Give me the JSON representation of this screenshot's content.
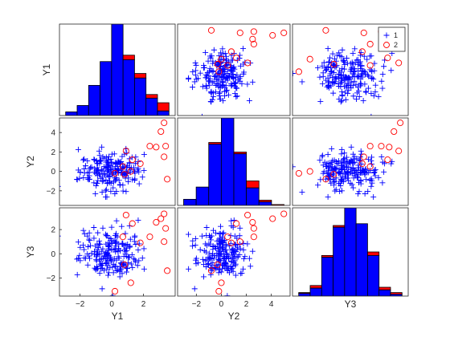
{
  "chart_data": {
    "type": "scatter-matrix",
    "variables": [
      "Y1",
      "Y2",
      "Y3"
    ],
    "colors": {
      "group1": "#0000ff",
      "group2": "#ff0000"
    },
    "legend": {
      "placement": "top-right",
      "entries": [
        {
          "label": "1",
          "marker": "plus",
          "color": "#0000ff"
        },
        {
          "label": "2",
          "marker": "circle",
          "color": "#ff0000"
        }
      ]
    },
    "axes": {
      "Y1": {
        "range": [
          -3.3,
          4.0
        ],
        "ticks": [
          -2,
          0,
          2
        ]
      },
      "Y2": {
        "range": [
          -3.5,
          5.5
        ],
        "ticks": [
          -2,
          0,
          2,
          4
        ]
      },
      "Y3": {
        "range": [
          -3.5,
          3.8
        ],
        "ticks": [
          -2,
          0,
          2
        ]
      }
    },
    "histograms": {
      "Y1": {
        "edges": [
          -3.0,
          -2.3,
          -1.6,
          -0.9,
          -0.2,
          0.5,
          1.2,
          1.9,
          2.6,
          3.3
        ],
        "group1": [
          4,
          11,
          33,
          59,
          100,
          61,
          41,
          19,
          5
        ],
        "group2": [
          0,
          0,
          0,
          0,
          0,
          5,
          5,
          4,
          9
        ]
      },
      "Y2": {
        "edges": [
          -3.0,
          -2.0,
          -1.0,
          0.0,
          1.0,
          2.0,
          3.0,
          4.0,
          5.0
        ],
        "group1": [
          7,
          21,
          70,
          100,
          59,
          20,
          4,
          0
        ],
        "group2": [
          0,
          0,
          2,
          0,
          2,
          8,
          2,
          1
        ]
      },
      "Y3": {
        "edges": [
          -3.3,
          -2.6,
          -1.9,
          -1.2,
          -0.5,
          0.2,
          0.9,
          1.6,
          2.3,
          3.0
        ],
        "group1": [
          3,
          9,
          44,
          78,
          100,
          82,
          46,
          7,
          2
        ],
        "group2": [
          1,
          3,
          2,
          2,
          0,
          0,
          4,
          3,
          2
        ]
      }
    },
    "group2_points": [
      {
        "Y1": 0.9,
        "Y2": 2.1,
        "Y3": 3.2
      },
      {
        "Y1": 1.3,
        "Y2": 1.2,
        "Y3": 2.5
      },
      {
        "Y1": 2.4,
        "Y2": 2.6,
        "Y3": 1.4
      },
      {
        "Y1": 2.8,
        "Y2": 2.5,
        "Y3": 2.6
      },
      {
        "Y1": 3.1,
        "Y2": 4.1,
        "Y3": 2.9
      },
      {
        "Y1": 3.3,
        "Y2": 5.0,
        "Y3": 3.3
      },
      {
        "Y1": 3.3,
        "Y2": 1.5,
        "Y3": 1.0
      },
      {
        "Y1": 3.4,
        "Y2": 2.6,
        "Y3": 2.1
      },
      {
        "Y1": 3.5,
        "Y2": -0.8,
        "Y3": -1.4
      },
      {
        "Y1": 1.2,
        "Y2": 0.0,
        "Y3": -2.4
      },
      {
        "Y1": 0.8,
        "Y2": -0.3,
        "Y3": -0.9
      },
      {
        "Y1": 0.2,
        "Y2": -0.2,
        "Y3": -3.1
      },
      {
        "Y1": 0.7,
        "Y2": 0.5,
        "Y3": 1.4
      },
      {
        "Y1": 1.8,
        "Y2": 0.8,
        "Y3": 0.9
      }
    ],
    "group1_summary": {
      "count": 200,
      "mean": [
        0,
        0,
        0
      ],
      "std": [
        1,
        1,
        1
      ],
      "correlation": 0.0
    }
  }
}
